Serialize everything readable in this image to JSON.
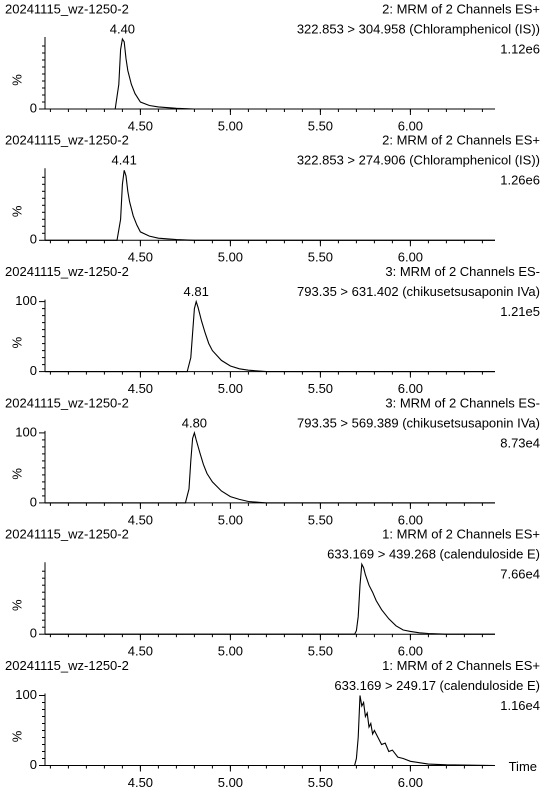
{
  "chart_data": [
    {
      "type": "line",
      "sample": "20241115_wz-1250-2",
      "function": "2: MRM of 2 Channels ES+",
      "transition": "322.853 > 304.958 (Chloramphenicol (IS))",
      "intensity": "1.12e6",
      "ylabel": "%",
      "peak_labels": [
        {
          "value": 4.4,
          "label": "4.40"
        }
      ],
      "xlim": [
        3.97,
        6.47
      ],
      "xticks": [
        {
          "value": 4.5,
          "label": "4.50"
        },
        {
          "value": 5,
          "label": "5.00"
        },
        {
          "value": 5.5,
          "label": "5.50"
        },
        {
          "value": 6,
          "label": "6.00"
        }
      ],
      "ylim": [
        0,
        100
      ],
      "yticks": [
        0
      ],
      "series": [
        {
          "color": "#000000",
          "x": [
            3.97,
            4.36,
            4.38,
            4.39,
            4.4,
            4.41,
            4.42,
            4.43,
            4.45,
            4.47,
            4.5,
            4.55,
            4.6,
            4.7,
            4.8,
            6.47
          ],
          "values": [
            0,
            0,
            35,
            85,
            100,
            96,
            72,
            55,
            35,
            22,
            10,
            5,
            3,
            1,
            0,
            0
          ]
        }
      ]
    },
    {
      "type": "line",
      "sample": "20241115_wz-1250-2",
      "function": "2: MRM of 2 Channels ES+",
      "transition": "322.853 > 274.906 (Chloramphenicol (IS))",
      "intensity": "1.26e6",
      "ylabel": "%",
      "peak_labels": [
        4.41
      ],
      "xlim": [
        3.97,
        6.47
      ],
      "xticks": [
        {
          "value": 4.5,
          "label": "4.50"
        },
        {
          "value": 5,
          "label": "5.00"
        },
        {
          "value": 5.5,
          "label": "5.50"
        },
        {
          "value": 6,
          "label": "6.00"
        }
      ],
      "ylim": [
        0,
        100
      ],
      "yticks": [
        0
      ],
      "series": [
        {
          "color": "#000000",
          "x": [
            3.97,
            4.37,
            4.39,
            4.4,
            4.41,
            4.42,
            4.43,
            4.44,
            4.46,
            4.48,
            4.5,
            4.55,
            4.6,
            4.7,
            4.8,
            6.47
          ],
          "values": [
            0,
            0,
            30,
            80,
            100,
            92,
            70,
            55,
            35,
            22,
            12,
            6,
            3,
            1,
            0,
            0
          ]
        }
      ]
    },
    {
      "type": "line",
      "sample": "20241115_wz-1250-2",
      "function": "3: MRM of 2 Channels ES-",
      "transition": "793.35 > 631.402 (chikusetsusaponin IVa)",
      "intensity": "1.21e5",
      "ylabel": "%",
      "peak_labels": [
        4.81
      ],
      "xlim": [
        3.97,
        6.47
      ],
      "xticks": [
        {
          "value": 4.5,
          "label": "4.50"
        },
        {
          "value": 5,
          "label": "5.00"
        },
        {
          "value": 5.5,
          "label": "5.50"
        },
        {
          "value": 6,
          "label": "6.00"
        }
      ],
      "ylim": [
        0,
        100
      ],
      "yticks": [
        0,
        100
      ],
      "series": [
        {
          "color": "#000000",
          "x": [
            3.97,
            4.76,
            4.78,
            4.79,
            4.8,
            4.81,
            4.82,
            4.84,
            4.86,
            4.88,
            4.9,
            4.95,
            5.0,
            5.05,
            5.1,
            5.2,
            6.47
          ],
          "values": [
            0,
            0,
            20,
            55,
            90,
            100,
            92,
            72,
            55,
            40,
            30,
            16,
            8,
            4,
            2,
            0,
            0
          ]
        }
      ]
    },
    {
      "type": "line",
      "sample": "20241115_wz-1250-2",
      "function": "3: MRM of 2 Channels ES-",
      "transition": "793.35 > 569.389 (chikusetsusaponin IVa)",
      "intensity": "8.73e4",
      "ylabel": "%",
      "peak_labels": [
        {
          "value": 4.8,
          "label": "4.80"
        }
      ],
      "xlim": [
        3.97,
        6.47
      ],
      "xticks": [
        {
          "value": 4.5,
          "label": "4.50"
        },
        {
          "value": 5,
          "label": "5.00"
        },
        {
          "value": 5.5,
          "label": "5.50"
        },
        {
          "value": 6,
          "label": "6.00"
        }
      ],
      "ylim": [
        0,
        100
      ],
      "yticks": [
        0,
        100
      ],
      "series": [
        {
          "color": "#000000",
          "x": [
            3.97,
            4.75,
            4.77,
            4.78,
            4.79,
            4.8,
            4.81,
            4.83,
            4.85,
            4.87,
            4.9,
            4.95,
            5.0,
            5.05,
            5.1,
            5.2,
            6.47
          ],
          "values": [
            0,
            0,
            20,
            60,
            92,
            100,
            90,
            72,
            55,
            42,
            30,
            17,
            9,
            5,
            2,
            0,
            0
          ]
        }
      ]
    },
    {
      "type": "line",
      "sample": "20241115_wz-1250-2",
      "function": "1: MRM of 2 Channels ES+",
      "transition": "633.169 > 439.268 (calenduloside E)",
      "intensity": "7.66e4",
      "ylabel": "%",
      "xlim": [
        3.97,
        6.47
      ],
      "xticks": [
        {
          "value": 4.5,
          "label": "4.50"
        },
        {
          "value": 5,
          "label": "5.00"
        },
        {
          "value": 5.5,
          "label": "5.50"
        },
        {
          "value": 6,
          "label": "6.00"
        }
      ],
      "ylim": [
        0,
        100
      ],
      "yticks": [
        0
      ],
      "series": [
        {
          "color": "#000000",
          "x": [
            3.97,
            5.69,
            5.7,
            5.71,
            5.72,
            5.73,
            5.74,
            5.75,
            5.77,
            5.79,
            5.81,
            5.84,
            5.88,
            5.92,
            5.96,
            6.0,
            6.05,
            6.1,
            6.2,
            6.47
          ],
          "values": [
            0,
            0,
            5,
            25,
            70,
            100,
            95,
            85,
            70,
            60,
            48,
            35,
            22,
            12,
            6,
            4,
            2,
            1,
            0,
            0
          ]
        }
      ]
    },
    {
      "type": "line",
      "sample": "20241115_wz-1250-2",
      "function": "1: MRM of 2 Channels ES+",
      "transition": "633.169 > 249.17 (calenduloside E)",
      "intensity": "1.16e4",
      "ylabel": "%",
      "xlabel": "Time",
      "xlim": [
        3.97,
        6.47
      ],
      "xticks": [
        {
          "value": 4.5,
          "label": "4.50"
        },
        {
          "value": 5,
          "label": "5.00"
        },
        {
          "value": 5.5,
          "label": "5.50"
        },
        {
          "value": 6,
          "label": "6.00"
        }
      ],
      "ylim": [
        0,
        100
      ],
      "yticks": [
        0,
        100
      ],
      "series": [
        {
          "color": "#000000",
          "x": [
            3.97,
            5.69,
            5.7,
            5.71,
            5.72,
            5.73,
            5.74,
            5.75,
            5.76,
            5.77,
            5.78,
            5.79,
            5.8,
            5.82,
            5.84,
            5.86,
            5.88,
            5.9,
            5.93,
            5.96,
            6.0,
            6.05,
            6.1,
            6.2,
            6.47
          ],
          "values": [
            0,
            0,
            10,
            40,
            100,
            85,
            90,
            70,
            75,
            55,
            60,
            45,
            50,
            40,
            30,
            32,
            20,
            22,
            12,
            10,
            6,
            4,
            2,
            1,
            0
          ]
        }
      ]
    }
  ]
}
